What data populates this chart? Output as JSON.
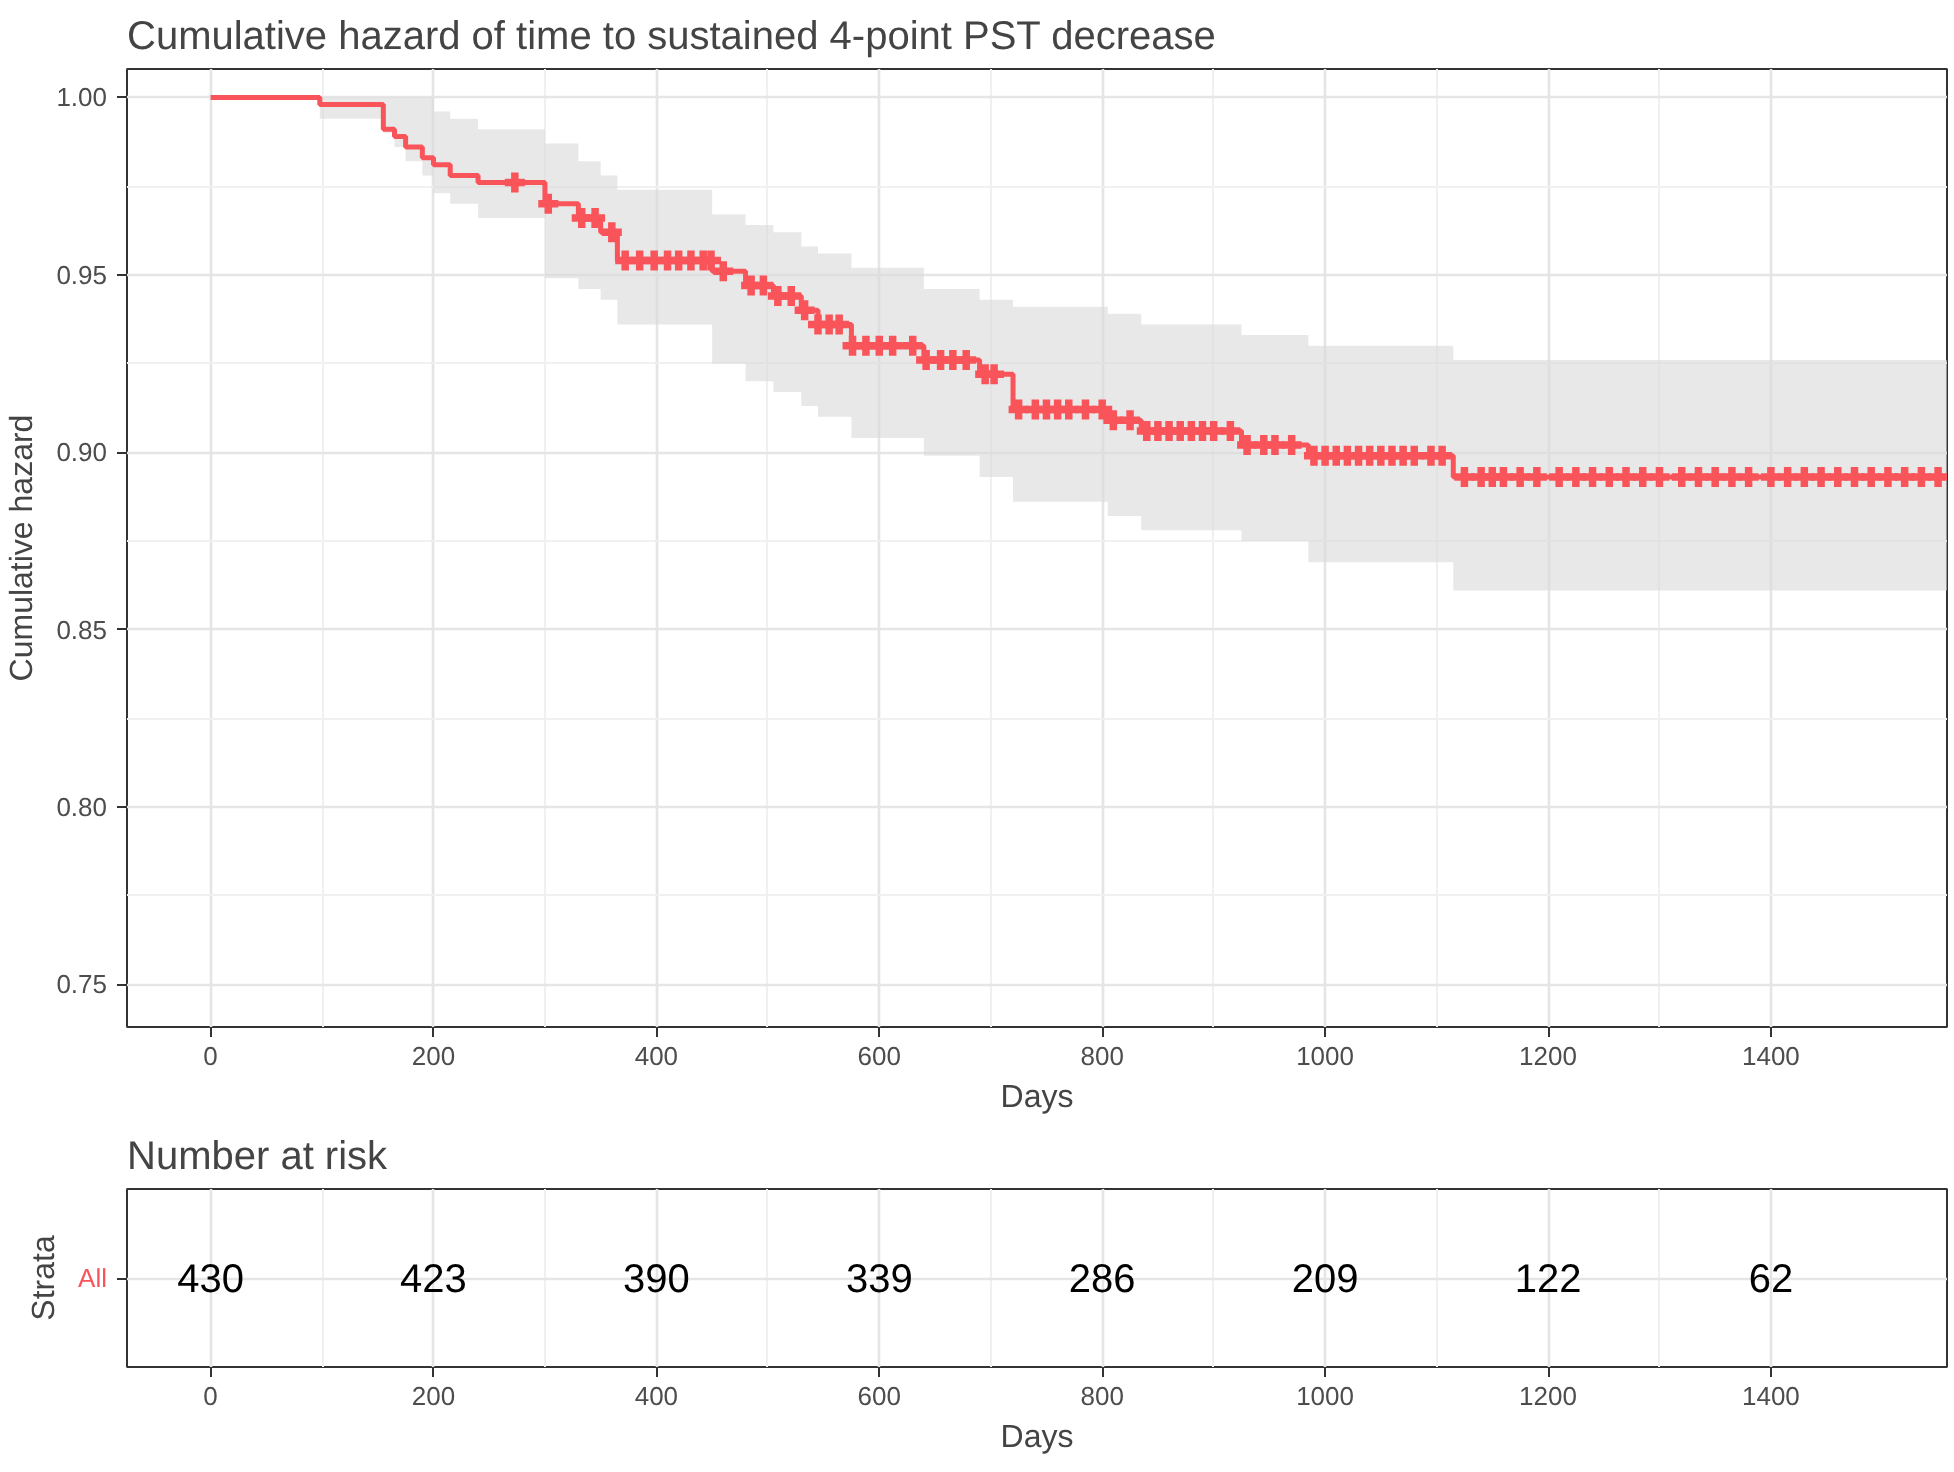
{
  "chart_data": [
    {
      "type": "step",
      "title": "Cumulative hazard of time to sustained 4-point PST decrease",
      "xlabel": "Days",
      "ylabel": "Cumulative hazard",
      "xlim": [
        -75,
        1558
      ],
      "ylim": [
        0.738,
        1.008
      ],
      "xticks": [
        0,
        200,
        400,
        600,
        800,
        1000,
        1200,
        1400
      ],
      "yticks": [
        {
          "value": 0.75,
          "label": "0.75"
        },
        {
          "value": 0.8,
          "label": "0.80"
        },
        {
          "value": 0.85,
          "label": "0.85"
        },
        {
          "value": 0.9,
          "label": "0.90"
        },
        {
          "value": 0.95,
          "label": "0.95"
        },
        {
          "value": 1.0,
          "label": "1.00"
        }
      ],
      "grid": true,
      "series": [
        {
          "type": "step",
          "color": "#f8545a",
          "marker": "none",
          "x": [
            0,
            98,
            155,
            165,
            175,
            190,
            200,
            215,
            240,
            300,
            330,
            350,
            365,
            450,
            480,
            505,
            530,
            545,
            575,
            640,
            690,
            720,
            805,
            835,
            925,
            985,
            1115,
            1558
          ],
          "values": [
            1.0,
            0.998,
            0.991,
            0.989,
            0.986,
            0.983,
            0.981,
            0.978,
            0.976,
            0.97,
            0.966,
            0.962,
            0.954,
            0.951,
            0.947,
            0.944,
            0.94,
            0.936,
            0.93,
            0.926,
            0.922,
            0.912,
            0.909,
            0.906,
            0.902,
            0.899,
            0.893,
            0.893
          ],
          "upper": [
            1.0,
            1.0,
            1.0,
            1.0,
            1.0,
            1.0,
            0.996,
            0.994,
            0.991,
            0.987,
            0.982,
            0.978,
            0.974,
            0.967,
            0.964,
            0.962,
            0.958,
            0.956,
            0.952,
            0.946,
            0.943,
            0.941,
            0.939,
            0.936,
            0.933,
            0.93,
            0.926,
            0.926
          ],
          "lower": [
            1.0,
            0.994,
            0.99,
            0.986,
            0.982,
            0.978,
            0.973,
            0.97,
            0.966,
            0.949,
            0.946,
            0.943,
            0.936,
            0.925,
            0.92,
            0.917,
            0.913,
            0.91,
            0.904,
            0.899,
            0.893,
            0.886,
            0.882,
            0.878,
            0.875,
            0.869,
            0.861,
            0.861
          ]
        },
        {
          "type": "scatter",
          "color": "#f8545a",
          "marker": "cross",
          "x": [
            273,
            303,
            333,
            345,
            360,
            372,
            385,
            398,
            410,
            420,
            431,
            442,
            449,
            460,
            485,
            496,
            509,
            521,
            533,
            545,
            555,
            564,
            576,
            588,
            600,
            612,
            630,
            642,
            655,
            666,
            678,
            695,
            703,
            725,
            740,
            750,
            760,
            770,
            785,
            800,
            810,
            825,
            840,
            850,
            860,
            870,
            880,
            890,
            900,
            915,
            930,
            945,
            955,
            970,
            990,
            1000,
            1010,
            1020,
            1030,
            1040,
            1050,
            1060,
            1070,
            1080,
            1095,
            1105,
            1125,
            1140,
            1150,
            1160,
            1175,
            1190,
            1210,
            1225,
            1240,
            1255,
            1270,
            1285,
            1300,
            1320,
            1335,
            1350,
            1365,
            1380,
            1400,
            1415,
            1430,
            1445,
            1460,
            1475,
            1490,
            1505,
            1520,
            1535,
            1550
          ],
          "values": [
            0.976,
            0.97,
            0.966,
            0.966,
            0.962,
            0.954,
            0.954,
            0.954,
            0.954,
            0.954,
            0.954,
            0.954,
            0.954,
            0.951,
            0.947,
            0.947,
            0.944,
            0.944,
            0.94,
            0.936,
            0.936,
            0.936,
            0.93,
            0.93,
            0.93,
            0.93,
            0.93,
            0.926,
            0.926,
            0.926,
            0.926,
            0.922,
            0.922,
            0.912,
            0.912,
            0.912,
            0.912,
            0.912,
            0.912,
            0.912,
            0.909,
            0.909,
            0.906,
            0.906,
            0.906,
            0.906,
            0.906,
            0.906,
            0.906,
            0.906,
            0.902,
            0.902,
            0.902,
            0.902,
            0.899,
            0.899,
            0.899,
            0.899,
            0.899,
            0.899,
            0.899,
            0.899,
            0.899,
            0.899,
            0.899,
            0.899,
            0.893,
            0.893,
            0.893,
            0.893,
            0.893,
            0.893,
            0.893,
            0.893,
            0.893,
            0.893,
            0.893,
            0.893,
            0.893,
            0.893,
            0.893,
            0.893,
            0.893,
            0.893,
            0.893,
            0.893,
            0.893,
            0.893,
            0.893,
            0.893,
            0.893,
            0.893,
            0.893,
            0.893,
            0.893
          ]
        }
      ]
    },
    {
      "type": "heatmap",
      "title": "Number at risk",
      "xlabel": "Days",
      "ylabel": "Strata",
      "xlim": [
        -75,
        1558
      ],
      "xticks": [
        0,
        200,
        400,
        600,
        800,
        1000,
        1200,
        1400
      ],
      "grid": true,
      "x": [
        0,
        200,
        400,
        600,
        800,
        1000,
        1200,
        1400
      ],
      "y_categories": [
        "All"
      ],
      "data_labels": true,
      "cells": [
        [
          430,
          423,
          390,
          339,
          286,
          209,
          122,
          62
        ]
      ]
    }
  ]
}
